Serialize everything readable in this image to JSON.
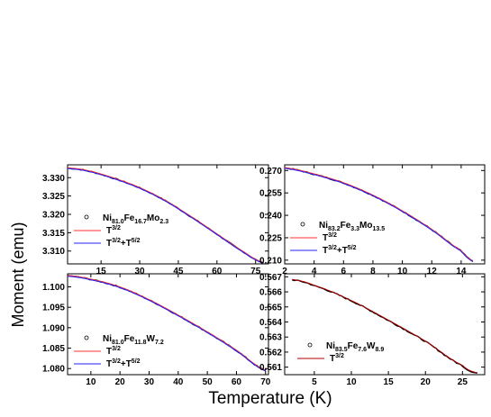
{
  "figure": {
    "xlabel": "Temperature (K)",
    "ylabel": "Moment (emu)"
  },
  "colors": {
    "data": "#000000",
    "t32": "#ff3030",
    "t32_t52": "#2020ff",
    "t32_dark": "#b00000"
  },
  "chart_data": [
    {
      "type": "line",
      "id": "tl",
      "xlim": [
        2,
        80
      ],
      "ylim": [
        3.3065,
        3.3335
      ],
      "xticks": [
        15,
        30,
        45,
        60,
        75
      ],
      "yticks": [
        3.31,
        3.315,
        3.32,
        3.325,
        3.33
      ],
      "ytick_labels": [
        "3.310",
        "3.315",
        "3.320",
        "3.325",
        "3.330"
      ],
      "x": [
        2,
        10,
        20,
        30,
        40,
        50,
        60,
        70,
        78
      ],
      "y": [
        3.3326,
        3.3318,
        3.3298,
        3.3272,
        3.3237,
        3.3193,
        3.3146,
        3.3099,
        3.3068
      ],
      "legend": {
        "sample_name": [
          "Ni",
          "81.0",
          "Fe",
          "16.7",
          "Mo",
          "2.3"
        ],
        "fits": [
          "T3/2",
          "T3/2+T5/2"
        ]
      }
    },
    {
      "type": "line",
      "id": "tr",
      "xlim": [
        2,
        15.6
      ],
      "ylim": [
        0.2075,
        0.2738
      ],
      "xticks": [
        2,
        4,
        6,
        8,
        10,
        12,
        14
      ],
      "yticks": [
        0.21,
        0.225,
        0.24,
        0.255,
        0.27
      ],
      "ytick_labels": [
        "0.210",
        "0.225",
        "0.240",
        "0.255",
        "0.270"
      ],
      "x": [
        2,
        4,
        6,
        8,
        10,
        12,
        14,
        14.8
      ],
      "y": [
        0.2717,
        0.2675,
        0.2616,
        0.2533,
        0.2428,
        0.2304,
        0.2163,
        0.2094
      ],
      "legend": {
        "sample_name": [
          "Ni",
          "83.2",
          "Fe",
          "3.3",
          "Mo",
          "13.5"
        ],
        "fits": [
          "T3/2",
          "T3/2+T5/2"
        ]
      }
    },
    {
      "type": "line",
      "id": "bl",
      "xlim": [
        2,
        71
      ],
      "ylim": [
        1.0785,
        1.1032
      ],
      "xticks": [
        10,
        20,
        30,
        40,
        50,
        60,
        70
      ],
      "yticks": [
        1.08,
        1.085,
        1.09,
        1.095,
        1.1
      ],
      "ytick_labels": [
        "1.080",
        "1.085",
        "1.090",
        "1.095",
        "1.100"
      ],
      "x": [
        2,
        10,
        20,
        30,
        40,
        50,
        60,
        70
      ],
      "y": [
        1.1027,
        1.1018,
        1.0999,
        1.0968,
        1.093,
        1.0889,
        1.0844,
        1.0795
      ],
      "legend": {
        "sample_name": [
          "Ni",
          "81.0",
          "Fe",
          "11.8",
          "W",
          "7.2"
        ],
        "fits": [
          "T3/2",
          "T3/2+T5/2"
        ]
      }
    },
    {
      "type": "line",
      "id": "br",
      "xlim": [
        1,
        28
      ],
      "ylim": [
        0.5605,
        0.5672
      ],
      "xticks": [
        5,
        10,
        15,
        20,
        25
      ],
      "yticks": [
        0.561,
        0.562,
        0.563,
        0.564,
        0.565,
        0.566,
        0.567
      ],
      "ytick_labels": [
        "0.561",
        "0.562",
        "0.563",
        "0.564",
        "0.565",
        "0.566",
        "0.567"
      ],
      "x": [
        2,
        5,
        10,
        15,
        20,
        25,
        27
      ],
      "y": [
        0.5668,
        0.5664,
        0.5654,
        0.5641,
        0.5627,
        0.5611,
        0.5606
      ],
      "legend": {
        "sample_name": [
          "Ni",
          "83.5",
          "Fe",
          "7.6",
          "W",
          "8.9"
        ],
        "fits": [
          "T3/2"
        ]
      }
    }
  ]
}
